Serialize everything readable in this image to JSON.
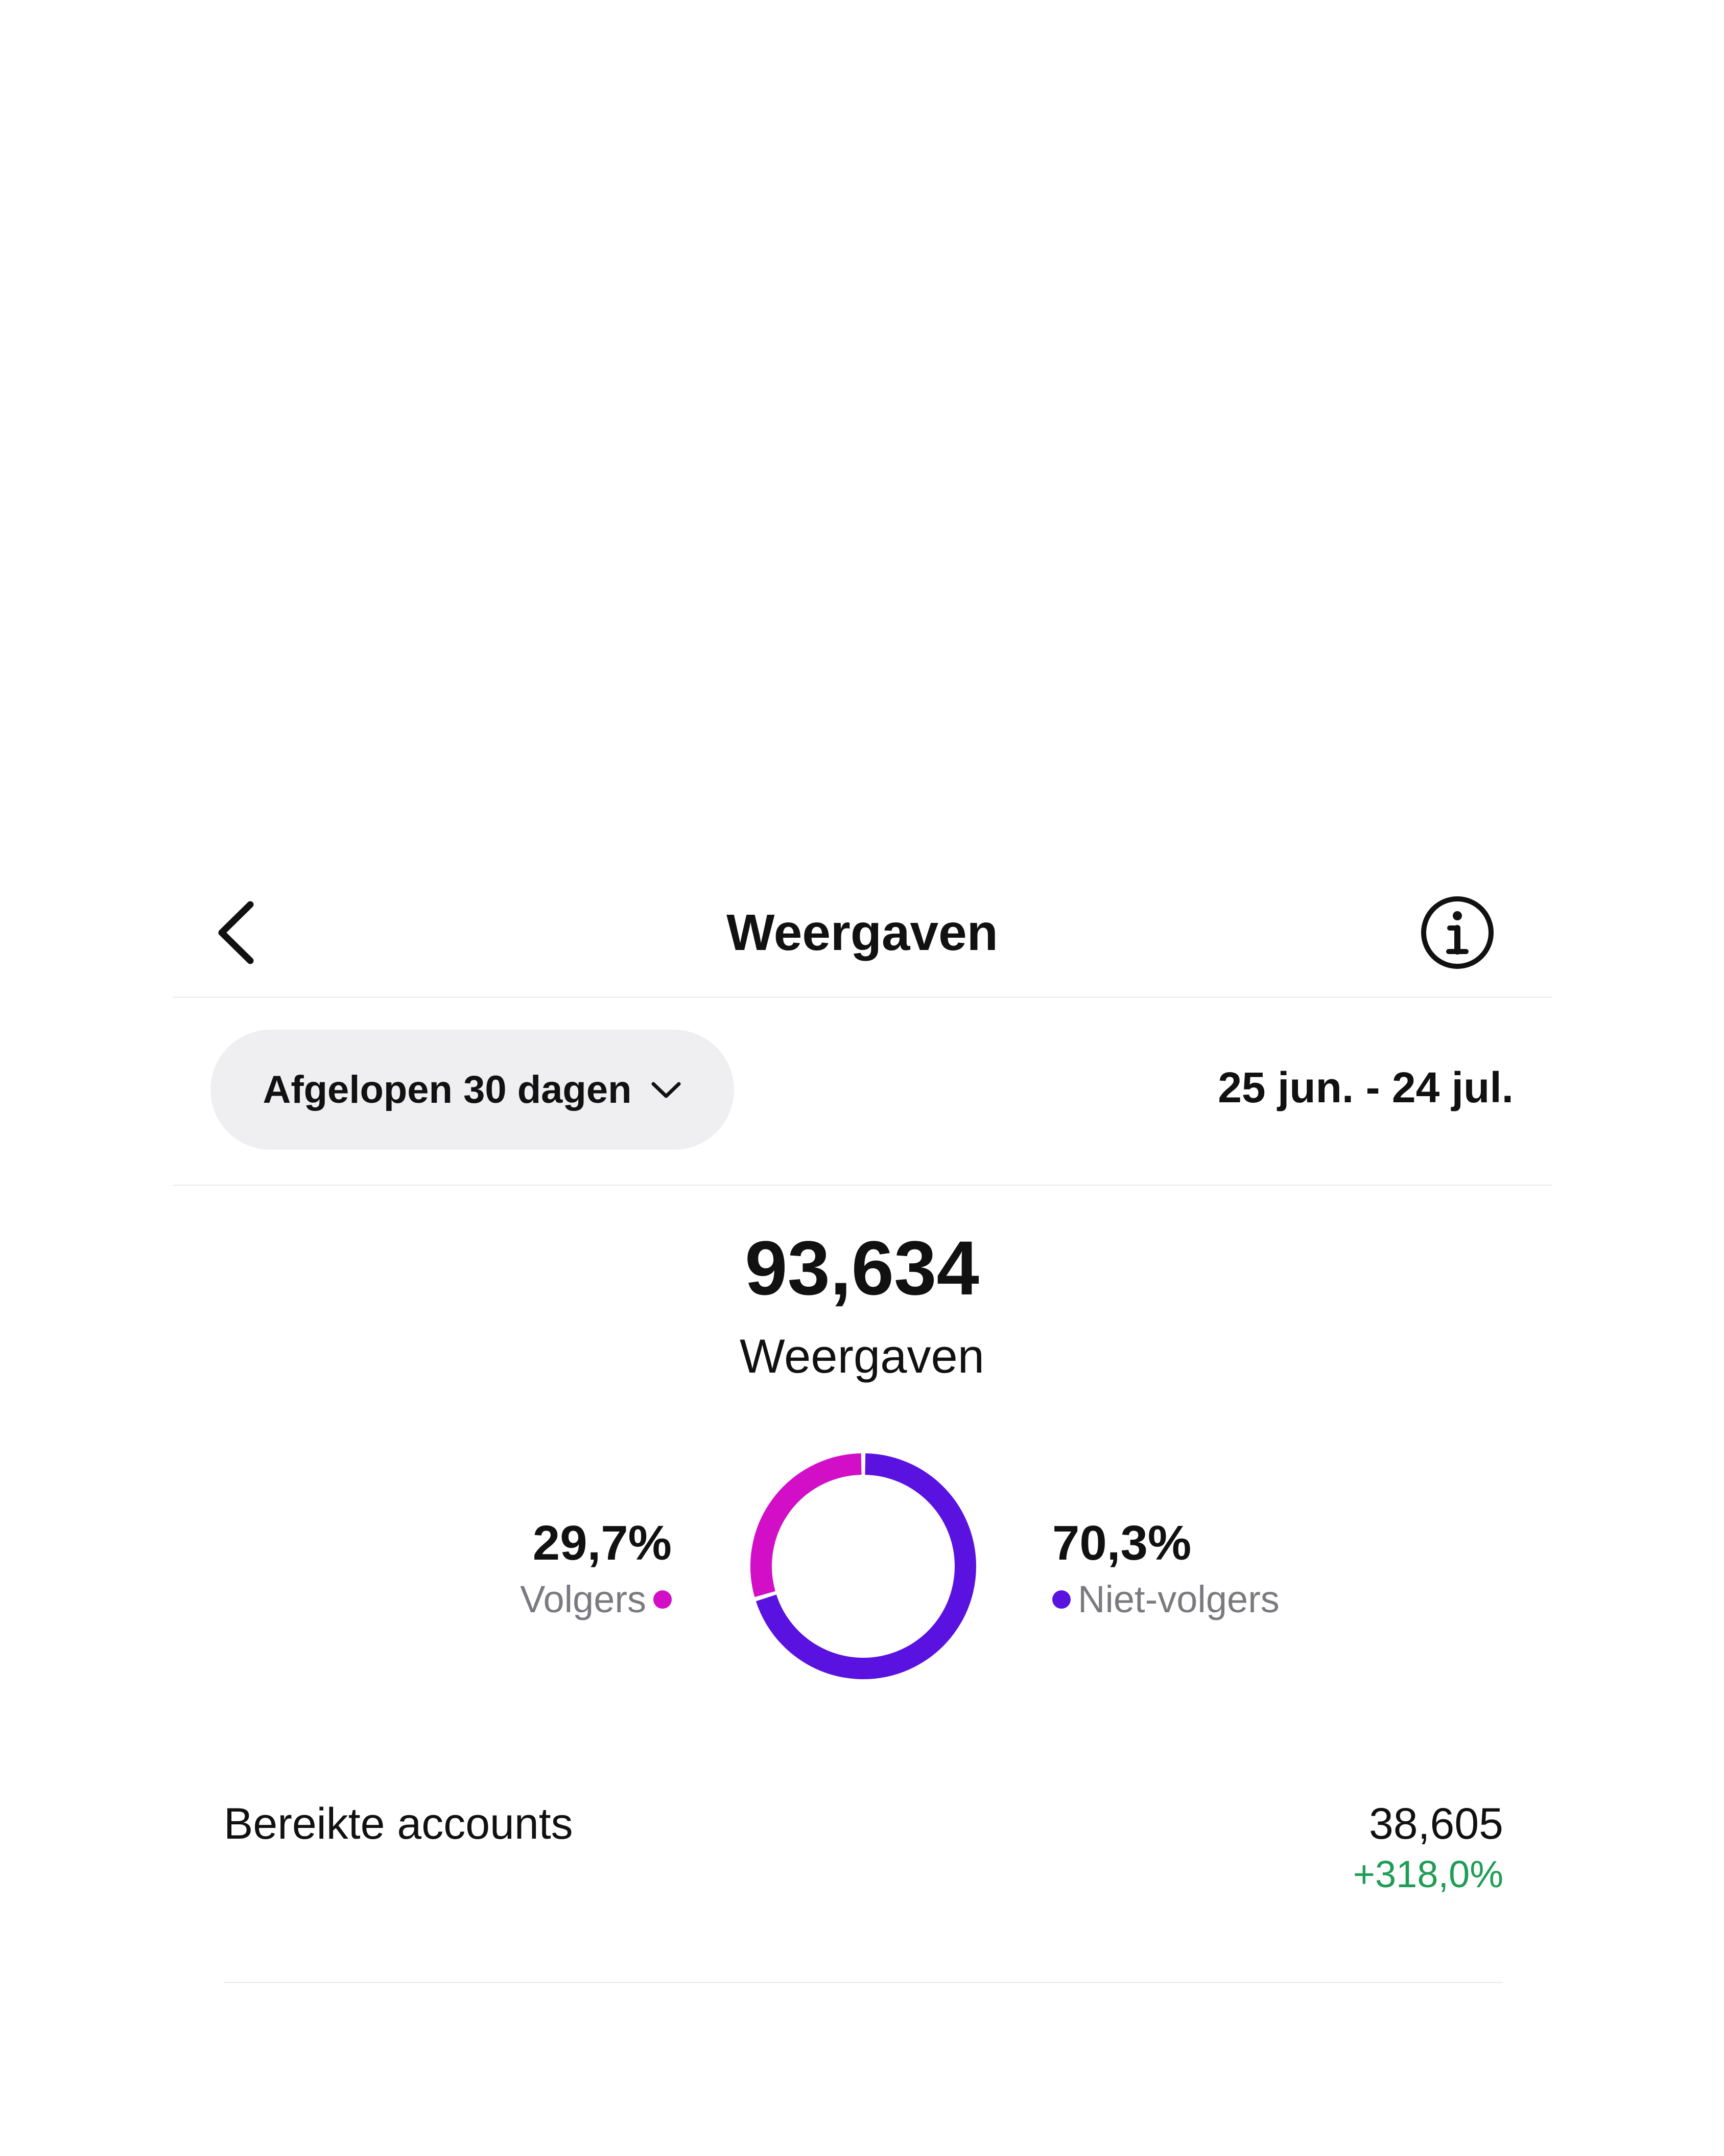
{
  "header": {
    "title": "Weergaven",
    "back_icon": "chevron-left-icon",
    "info_icon": "info-circle-icon"
  },
  "filter": {
    "range_label": "Afgelopen 30 dagen",
    "dropdown_icon": "chevron-down-icon",
    "date_range": "25 jun. - 24 jul."
  },
  "summary": {
    "total_value": "93,634",
    "total_label": "Weergaven"
  },
  "breakdown": {
    "followers": {
      "percent_text": "29,7%",
      "label": "Volgers",
      "value": 29.7,
      "color": "#d20fc6"
    },
    "non_followers": {
      "percent_text": "70,3%",
      "label": "Niet-volgers",
      "value": 70.3,
      "color": "#5a12e0"
    }
  },
  "metrics": [
    {
      "label": "Bereikte accounts",
      "value": "38,605",
      "change": "+318,0%",
      "change_color": "#1f9d55"
    }
  ]
}
